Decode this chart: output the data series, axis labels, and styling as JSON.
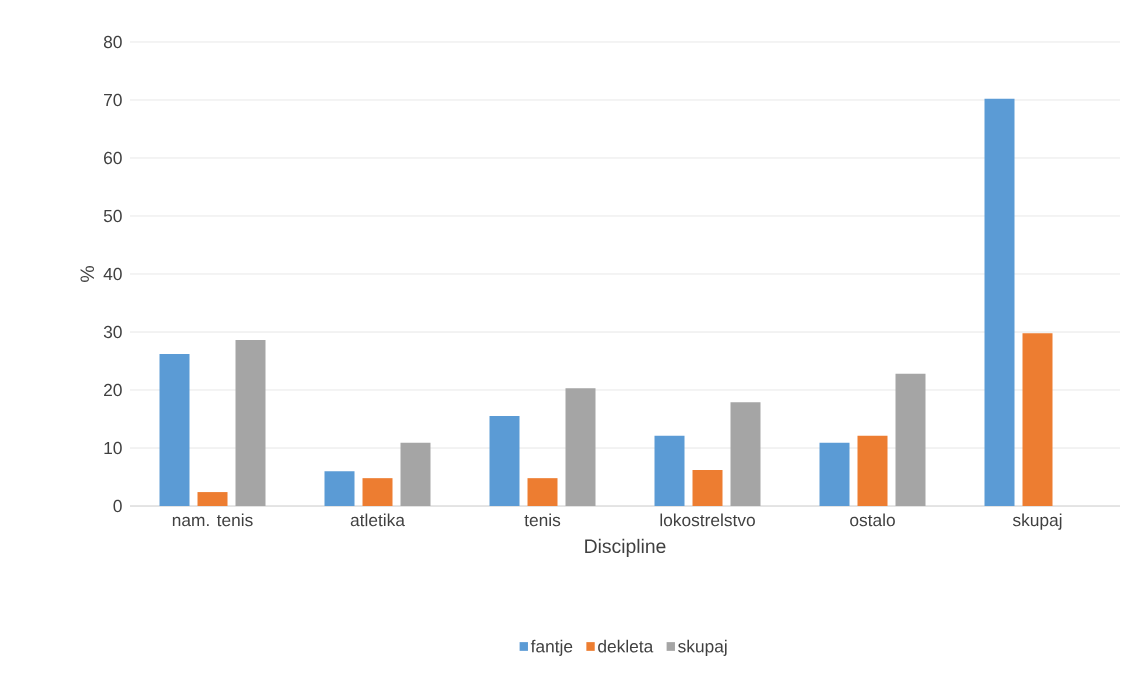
{
  "chart_data": {
    "type": "bar",
    "xlabel": "Discipline",
    "ylabel": "%",
    "categories": [
      "nam. tenis",
      "atletika",
      "tenis",
      "lokostrelstvo",
      "ostalo",
      "skupaj"
    ],
    "series": [
      {
        "name": "fantje",
        "color": "#5b9bd5",
        "values": [
          26.2,
          6.0,
          15.5,
          12.1,
          10.9,
          70.2
        ]
      },
      {
        "name": "dekleta",
        "color": "#ed7d31",
        "values": [
          2.4,
          4.8,
          4.8,
          6.2,
          12.1,
          29.8
        ]
      },
      {
        "name": "skupaj",
        "color": "#a5a5a5",
        "values": [
          28.6,
          10.9,
          20.3,
          17.9,
          22.8,
          null
        ]
      }
    ],
    "ylim": [
      0,
      80
    ],
    "yticks": [
      0,
      10,
      20,
      30,
      40,
      50,
      60,
      70,
      80
    ],
    "grid": "y",
    "legend": "bottom"
  }
}
